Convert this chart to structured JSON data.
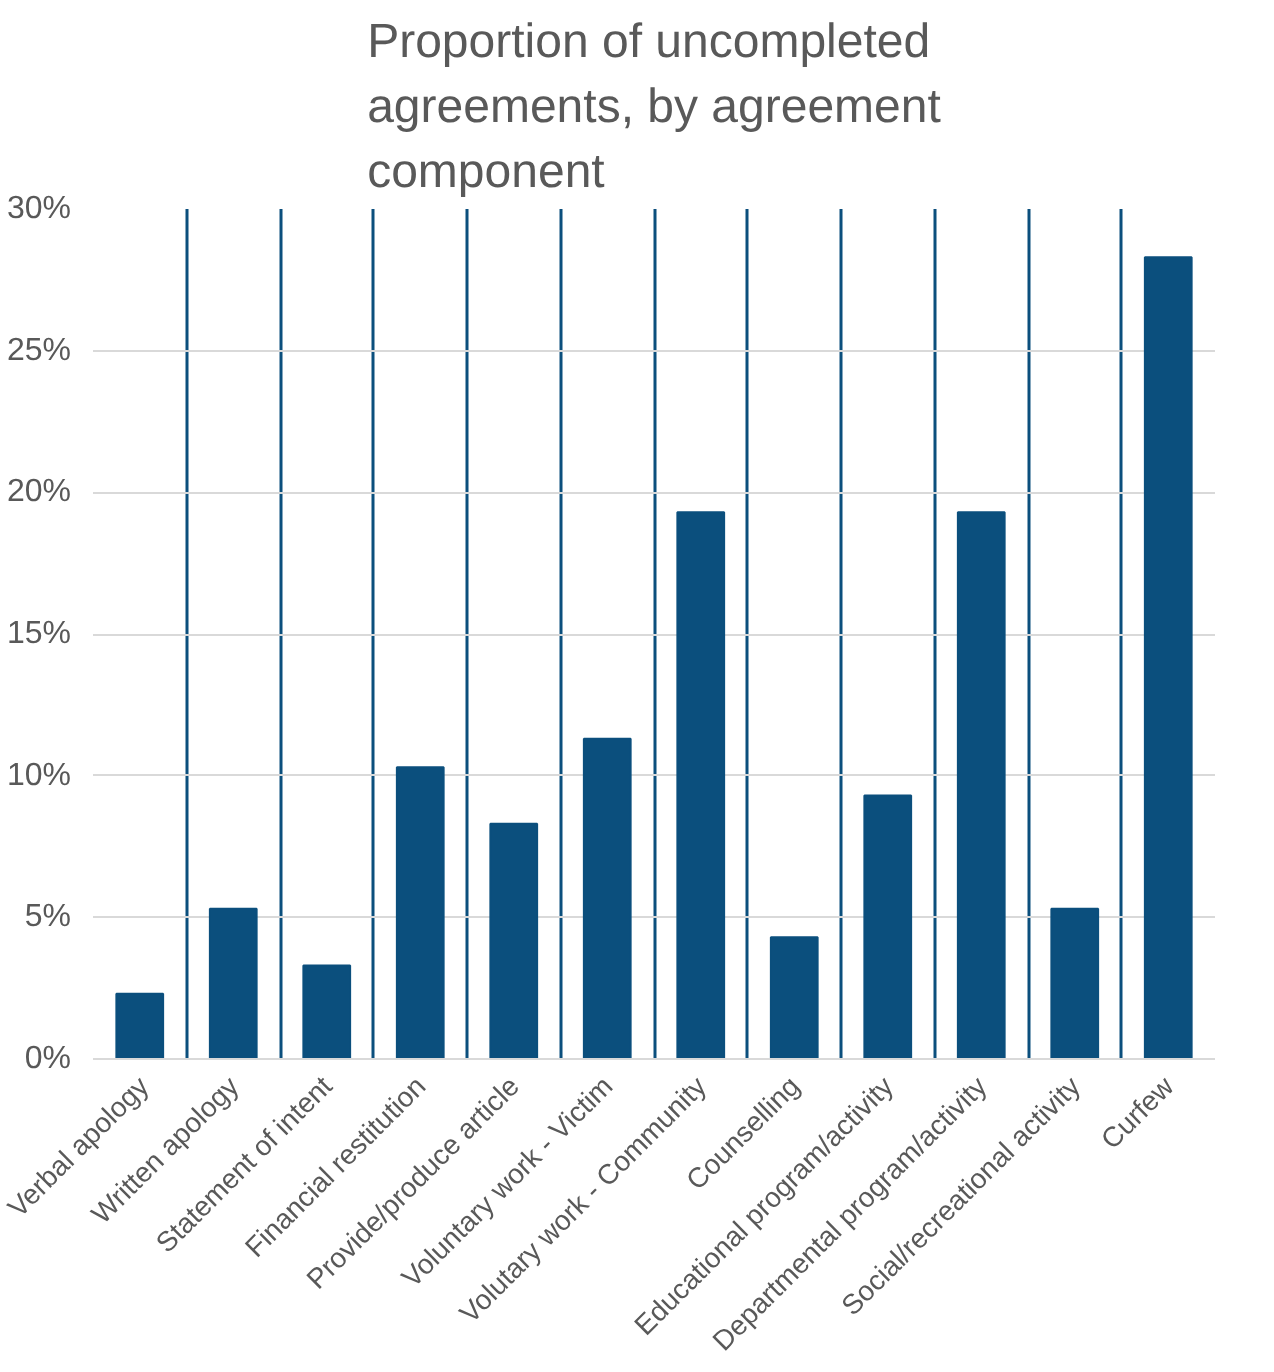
{
  "chart_data": {
    "type": "bar",
    "title": "Proportion of uncompleted agreements, by agreement component",
    "categories": [
      "Verbal apology",
      "Written apology",
      "Statement of intent",
      "Financial restitution",
      "Provide/produce article",
      "Voluntary work - Victim",
      "Volutary work - Community",
      "Counselling",
      "Educational program/activity",
      "Departmental program/activity",
      "Social/recreational activity",
      "Curfew"
    ],
    "values": [
      2.3,
      5.3,
      3.3,
      10.3,
      8.3,
      11.3,
      19.3,
      4.3,
      9.3,
      19.3,
      5.3,
      28.3
    ],
    "color": "#0b4f7d",
    "ylim": [
      0,
      30
    ],
    "yticks": [
      {
        "value": 0,
        "label": "0%"
      },
      {
        "value": 5,
        "label": "5%"
      },
      {
        "value": 10,
        "label": "10%"
      },
      {
        "value": 15,
        "label": "15%"
      },
      {
        "value": 20,
        "label": "20%"
      },
      {
        "value": 25,
        "label": "25%"
      },
      {
        "value": 30,
        "label": "30%"
      }
    ],
    "grid": true
  }
}
